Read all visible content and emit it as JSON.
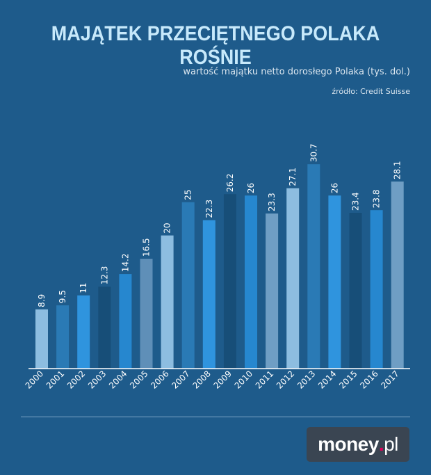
{
  "title": "MAJĄTEK PRZECIĘTNEGO POLAKA ROŚNIE",
  "subtitle": "wartość majątku netto dorosłego Polaka (tys. dol.)",
  "source": "źródło: Credit Suisse",
  "logo": {
    "brand": "money",
    "dot": ".",
    "tld": "pl"
  },
  "chart_data": {
    "type": "bar",
    "title": "MAJĄTEK PRZECIĘTNEGO POLAKA ROŚNIE",
    "subtitle": "wartość majątku netto dorosłego Polaka (tys. dol.)",
    "categories": [
      "2000",
      "2001",
      "2002",
      "2003",
      "2004",
      "2005",
      "2006",
      "2007",
      "2008",
      "2009",
      "2010",
      "2011",
      "2012",
      "2013",
      "2014",
      "2015",
      "2016",
      "2017"
    ],
    "values": [
      8.9,
      9.5,
      11,
      12.3,
      14.2,
      16.5,
      20,
      25,
      22.3,
      26.2,
      26,
      23.3,
      27.1,
      30.7,
      26,
      23.4,
      23.8,
      28.1
    ],
    "labels": [
      "8.9",
      "9.5",
      "11",
      "12.3",
      "14.2",
      "16.5",
      "20",
      "25",
      "22.3",
      "26.2",
      "26",
      "23.3",
      "27.1",
      "30.7",
      "26",
      "23.4",
      "23.8",
      "28.1"
    ],
    "colors": [
      "#8dbde0",
      "#2a7ab5",
      "#2f94de",
      "#174e78",
      "#2687cf",
      "#5f8fb8",
      "#8dbde0",
      "#2a7ab5",
      "#2f94de",
      "#174e78",
      "#2687cf",
      "#6f9ec4",
      "#8dbde0",
      "#2a7ab5",
      "#2f94de",
      "#174e78",
      "#2687cf",
      "#6f9ec4"
    ],
    "ylim": [
      0,
      35
    ],
    "grid": false,
    "xlabel": "",
    "ylabel": ""
  }
}
